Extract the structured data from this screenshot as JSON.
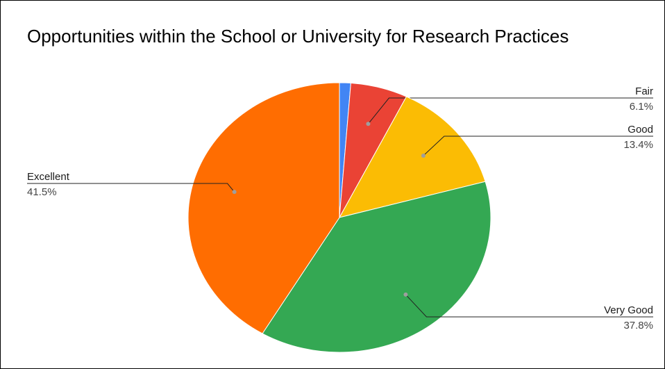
{
  "chart_data": {
    "type": "pie",
    "title": "Opportunities within the School or University for Research Practices",
    "slices": [
      {
        "label": "",
        "value": 1.2,
        "value_label": "",
        "color": "#4285f4"
      },
      {
        "label": "Fair",
        "value": 6.1,
        "value_label": "6.1%",
        "color": "#ea4335"
      },
      {
        "label": "Good",
        "value": 13.4,
        "value_label": "13.4%",
        "color": "#fbbc04"
      },
      {
        "label": "Very Good",
        "value": 37.8,
        "value_label": "37.8%",
        "color": "#34a853"
      },
      {
        "label": "Excellent",
        "value": 41.5,
        "value_label": "41.5%",
        "color": "#ff6d01"
      }
    ],
    "legend": "none",
    "labels": "outside with leader lines"
  }
}
